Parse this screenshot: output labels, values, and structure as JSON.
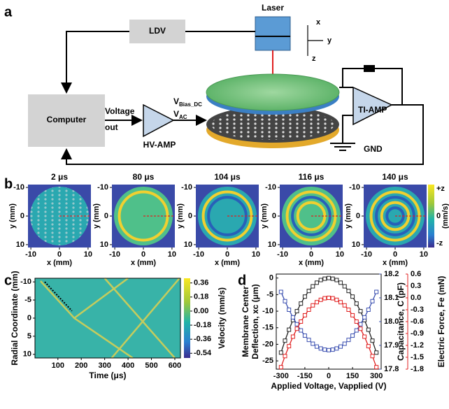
{
  "diagram": {
    "panel": "a",
    "ldv": "LDV",
    "laser": "Laser",
    "axes": [
      "x",
      "y",
      "z"
    ],
    "computer": "Computer",
    "voltage": [
      "Voltage",
      "out"
    ],
    "hv_amp": "HV-AMP",
    "v_bias": {
      "symbol": "V",
      "sub": "Bias_DC"
    },
    "v_ac": {
      "symbol": "V",
      "sub": "AC"
    },
    "ti_amp": "TI-AMP",
    "gnd": "GND"
  },
  "chart_data": [
    {
      "type": "heatmap-grid",
      "panel": "b",
      "titles": [
        "2 μs",
        "80 μs",
        "104 μs",
        "116 μs",
        "140 μs"
      ],
      "xlim": [
        -11,
        11
      ],
      "ylim": [
        -11,
        11
      ],
      "y_inverted": true,
      "xticks": [
        -10,
        0,
        10
      ],
      "yticks": [
        -10,
        0,
        10
      ],
      "xlabel": "x (mm)",
      "ylabel": "y (mm)",
      "colorbar": {
        "labels": [
          "+z",
          "0",
          "-z"
        ],
        "unit": "(mm/s)"
      }
    },
    {
      "type": "heatmap",
      "panel": "c",
      "xlabel": "Time (μs)",
      "ylabel": "Radial Coordinate (mm)",
      "xlim": [
        2,
        624
      ],
      "ylim": [
        -11,
        11
      ],
      "y_inverted": true,
      "xticks": [
        100,
        200,
        300,
        400,
        500,
        600
      ],
      "yticks": [
        -10,
        -5,
        0,
        5,
        10
      ],
      "colorbar": {
        "label": "Velocity (mm/s)",
        "lim": [
          -0.6,
          0.42
        ],
        "ticks": [
          0.36,
          0.18,
          {
            "value": 0,
            "label": "0.00"
          },
          -0.18,
          -0.36,
          -0.54
        ]
      }
    },
    {
      "type": "line",
      "panel": "d",
      "xlabel": "Applied Voltage, Vapplied (V)",
      "ylabel": [
        "Membrane Center",
        "Deflection, xc (μm)"
      ],
      "y2label": "Capacitance, C (pF)",
      "y3label": "Electric Force, Fe (mN)",
      "x": [
        -300,
        -275,
        -250,
        -225,
        -200,
        -175,
        -150,
        -125,
        -100,
        -75,
        -50,
        -25,
        0,
        25,
        50,
        75,
        100,
        125,
        150,
        175,
        200,
        225,
        250,
        275,
        300
      ],
      "xlim": [
        -330,
        330
      ],
      "xticks": [
        -300,
        -150,
        0,
        150,
        300
      ],
      "ylim": [
        -27.5,
        1.2
      ],
      "yticks": [
        0,
        -5,
        -10,
        -15,
        -20,
        -25
      ],
      "y2lim": [
        17.8,
        18.2
      ],
      "y2ticks": [
        17.8,
        17.9,
        {
          "value": 18,
          "label": "18.0"
        },
        18.1,
        18.2
      ],
      "y3lim": [
        -1.8,
        0.6
      ],
      "y3ticks": [
        0.6,
        0.3,
        {
          "value": 0,
          "label": "0.0"
        },
        -0.3,
        -0.6,
        -0.9,
        -1.2,
        -1.5,
        -1.8
      ],
      "series": [
        {
          "color": "#222222",
          "axis": "y",
          "values": [
            -22.5,
            -18.9,
            -15.6,
            -12.7,
            -10,
            -7.7,
            -5.6,
            -3.9,
            -2.5,
            -1.4,
            -0.6,
            -0.2,
            0,
            -0.2,
            -0.6,
            -1.4,
            -2.5,
            -3.9,
            -5.6,
            -7.7,
            -10,
            -12.7,
            -15.6,
            -18.9,
            -22.5
          ]
        },
        {
          "color": "#3a4fb0",
          "axis": "y2",
          "values": [
            18.125,
            18.086,
            18.05,
            18.018,
            17.989,
            17.963,
            17.941,
            17.923,
            17.907,
            17.895,
            17.887,
            17.882,
            17.88,
            17.882,
            17.887,
            17.895,
            17.907,
            17.923,
            17.941,
            17.963,
            17.989,
            18.018,
            18.05,
            18.086,
            18.125
          ]
        },
        {
          "color": "#e02020",
          "axis": "y3",
          "values": [
            -1.75,
            -1.47,
            -1.22,
            -0.98,
            -0.78,
            -0.6,
            -0.44,
            -0.3,
            -0.19,
            -0.11,
            -0.05,
            -0.01,
            0,
            -0.01,
            -0.05,
            -0.11,
            -0.19,
            -0.3,
            -0.44,
            -0.6,
            -0.78,
            -0.98,
            -1.22,
            -1.47,
            -1.75
          ]
        }
      ]
    }
  ]
}
